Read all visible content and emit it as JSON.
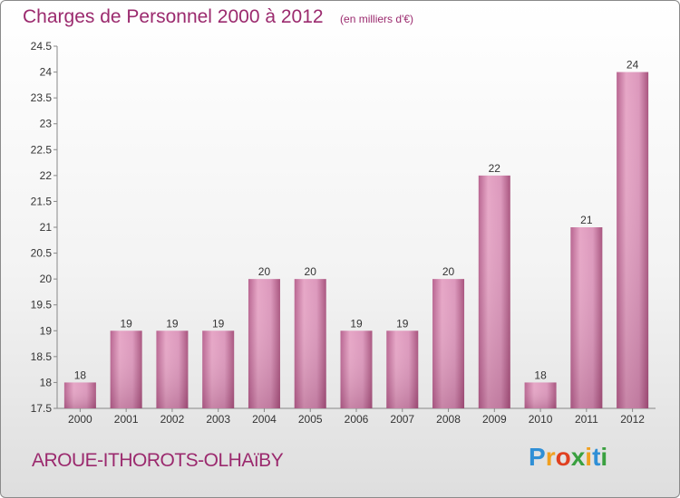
{
  "header": {
    "title": "Charges de Personnel 2000 à 2012",
    "subtitle": "(en milliers d'€)"
  },
  "footer": {
    "commune": "AROUE-ITHOROTS-OLHAïBY",
    "logo_letters": [
      "P",
      "r",
      "o",
      "x",
      "i",
      "t",
      "i"
    ],
    "logo_colors": [
      "#2f8fd6",
      "#f0a020",
      "#e04020",
      "#3aa040",
      "#f0a020",
      "#2f8fd6",
      "#3aa040"
    ]
  },
  "colors": {
    "bar": "#c8749e",
    "bar_light": "#e6a8c8",
    "bar_dark": "#a8547e",
    "accent": "#9b2a6e"
  },
  "chart_data": {
    "type": "bar",
    "categories": [
      "2000",
      "2001",
      "2002",
      "2003",
      "2004",
      "2005",
      "2006",
      "2007",
      "2008",
      "2009",
      "2010",
      "2011",
      "2012"
    ],
    "values": [
      18,
      19,
      19,
      19,
      20,
      20,
      19,
      19,
      20,
      22,
      18,
      21,
      24
    ],
    "value_labels": [
      "18",
      "19",
      "19",
      "19",
      "20",
      "20",
      "19",
      "19",
      "20",
      "22",
      "18",
      "21",
      "24"
    ],
    "title": "Charges de Personnel 2000 à 2012",
    "subtitle": "(en milliers d'€)",
    "xlabel": "",
    "ylabel": "",
    "ylim": [
      17.5,
      24.5
    ],
    "yticks": [
      17.5,
      18,
      18.5,
      19,
      19.5,
      20,
      20.5,
      21,
      21.5,
      22,
      22.5,
      23,
      23.5,
      24,
      24.5
    ],
    "ytick_labels": [
      "17.5",
      "18",
      "18.5",
      "19",
      "19.5",
      "20",
      "20.5",
      "21",
      "21.5",
      "22",
      "22.5",
      "23",
      "23.5",
      "24",
      "24.5"
    ],
    "grid": false,
    "legend": "none"
  }
}
